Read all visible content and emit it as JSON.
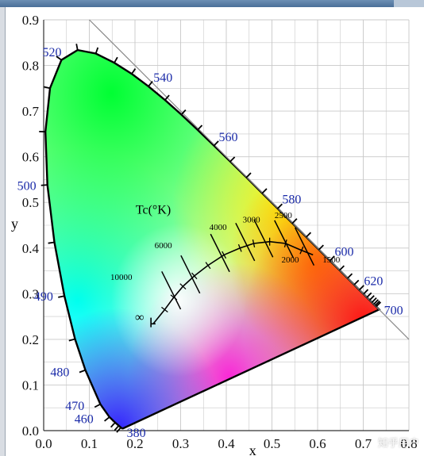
{
  "window": {
    "top_bar_color": "#5a7ea8"
  },
  "diagram": {
    "title": "",
    "x_axis_label": "x",
    "y_axis_label": "y",
    "x_ticks": [
      "0.0",
      "0.1",
      "0.2",
      "0.3",
      "0.4",
      "0.5",
      "0.6",
      "0.7",
      "0.8"
    ],
    "y_ticks": [
      "0.0",
      "0.1",
      "0.2",
      "0.3",
      "0.4",
      "0.5",
      "0.6",
      "0.7",
      "0.8",
      "0.9"
    ],
    "wavelength_labels": [
      {
        "text": "520",
        "x": 0.074,
        "y": 0.834
      },
      {
        "text": "540",
        "x": 0.23,
        "y": 0.754
      },
      {
        "text": "560",
        "x": 0.373,
        "y": 0.624
      },
      {
        "text": "580",
        "x": 0.512,
        "y": 0.487
      },
      {
        "text": "600",
        "x": 0.627,
        "y": 0.373
      },
      {
        "text": "620",
        "x": 0.691,
        "y": 0.308
      },
      {
        "text": "700",
        "x": 0.735,
        "y": 0.265
      },
      {
        "text": "500",
        "x": 0.008,
        "y": 0.538
      },
      {
        "text": "490",
        "x": 0.045,
        "y": 0.295
      },
      {
        "text": "480",
        "x": 0.091,
        "y": 0.133
      },
      {
        "text": "470",
        "x": 0.124,
        "y": 0.059
      },
      {
        "text": "460",
        "x": 0.144,
        "y": 0.03
      },
      {
        "text": "380",
        "x": 0.175,
        "y": 0.005
      }
    ],
    "planckian_locus_title": "Tc(°K)",
    "temperature_labels": [
      "10000",
      "6000",
      "4000",
      "3000",
      "2500",
      "2000",
      "1500",
      "∞"
    ],
    "colors": {
      "green": "#00ff33",
      "cyan": "#00ffff",
      "blue": "#3a2cff",
      "magenta": "#ff00cc",
      "red": "#ff1a1a",
      "yellow": "#ffff00",
      "orange": "#ff8a00",
      "grid": "#c8c8c8",
      "wavelength_label": "#1a2aa8"
    }
  },
  "watermark": "知乎用户"
}
